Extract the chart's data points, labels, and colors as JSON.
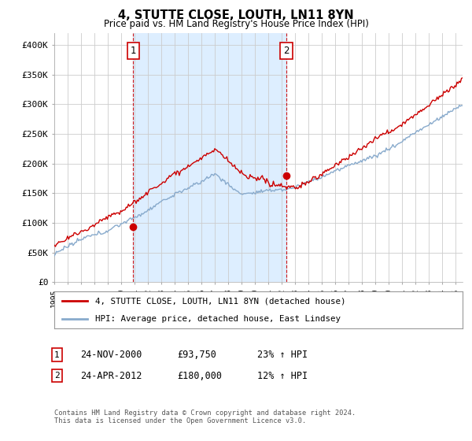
{
  "title": "4, STUTTE CLOSE, LOUTH, LN11 8YN",
  "subtitle": "Price paid vs. HM Land Registry's House Price Index (HPI)",
  "ylabel_ticks": [
    "£0",
    "£50K",
    "£100K",
    "£150K",
    "£200K",
    "£250K",
    "£300K",
    "£350K",
    "£400K"
  ],
  "ytick_values": [
    0,
    50000,
    100000,
    150000,
    200000,
    250000,
    300000,
    350000,
    400000
  ],
  "ylim": [
    0,
    420000
  ],
  "legend_line1": "4, STUTTE CLOSE, LOUTH, LN11 8YN (detached house)",
  "legend_line2": "HPI: Average price, detached house, East Lindsey",
  "footer": "Contains HM Land Registry data © Crown copyright and database right 2024.\nThis data is licensed under the Open Government Licence v3.0.",
  "marker1_year": 2000.9,
  "marker1_value": 93750,
  "marker2_year": 2012.32,
  "marker2_value": 180000,
  "vline1_year": 2000.9,
  "vline2_year": 2012.32,
  "line_color_red": "#cc0000",
  "line_color_blue": "#88aacc",
  "vline_color": "#cc0000",
  "shade_color": "#ddeeff",
  "bg_color": "#ffffff",
  "grid_color": "#cccccc",
  "start_year": 1995.0,
  "end_year": 2025.5,
  "box1_label": "1",
  "box2_label": "2",
  "row1_date": "24-NOV-2000",
  "row1_price": "£93,750",
  "row1_hpi": "23% ↑ HPI",
  "row2_date": "24-APR-2012",
  "row2_price": "£180,000",
  "row2_hpi": "12% ↑ HPI"
}
